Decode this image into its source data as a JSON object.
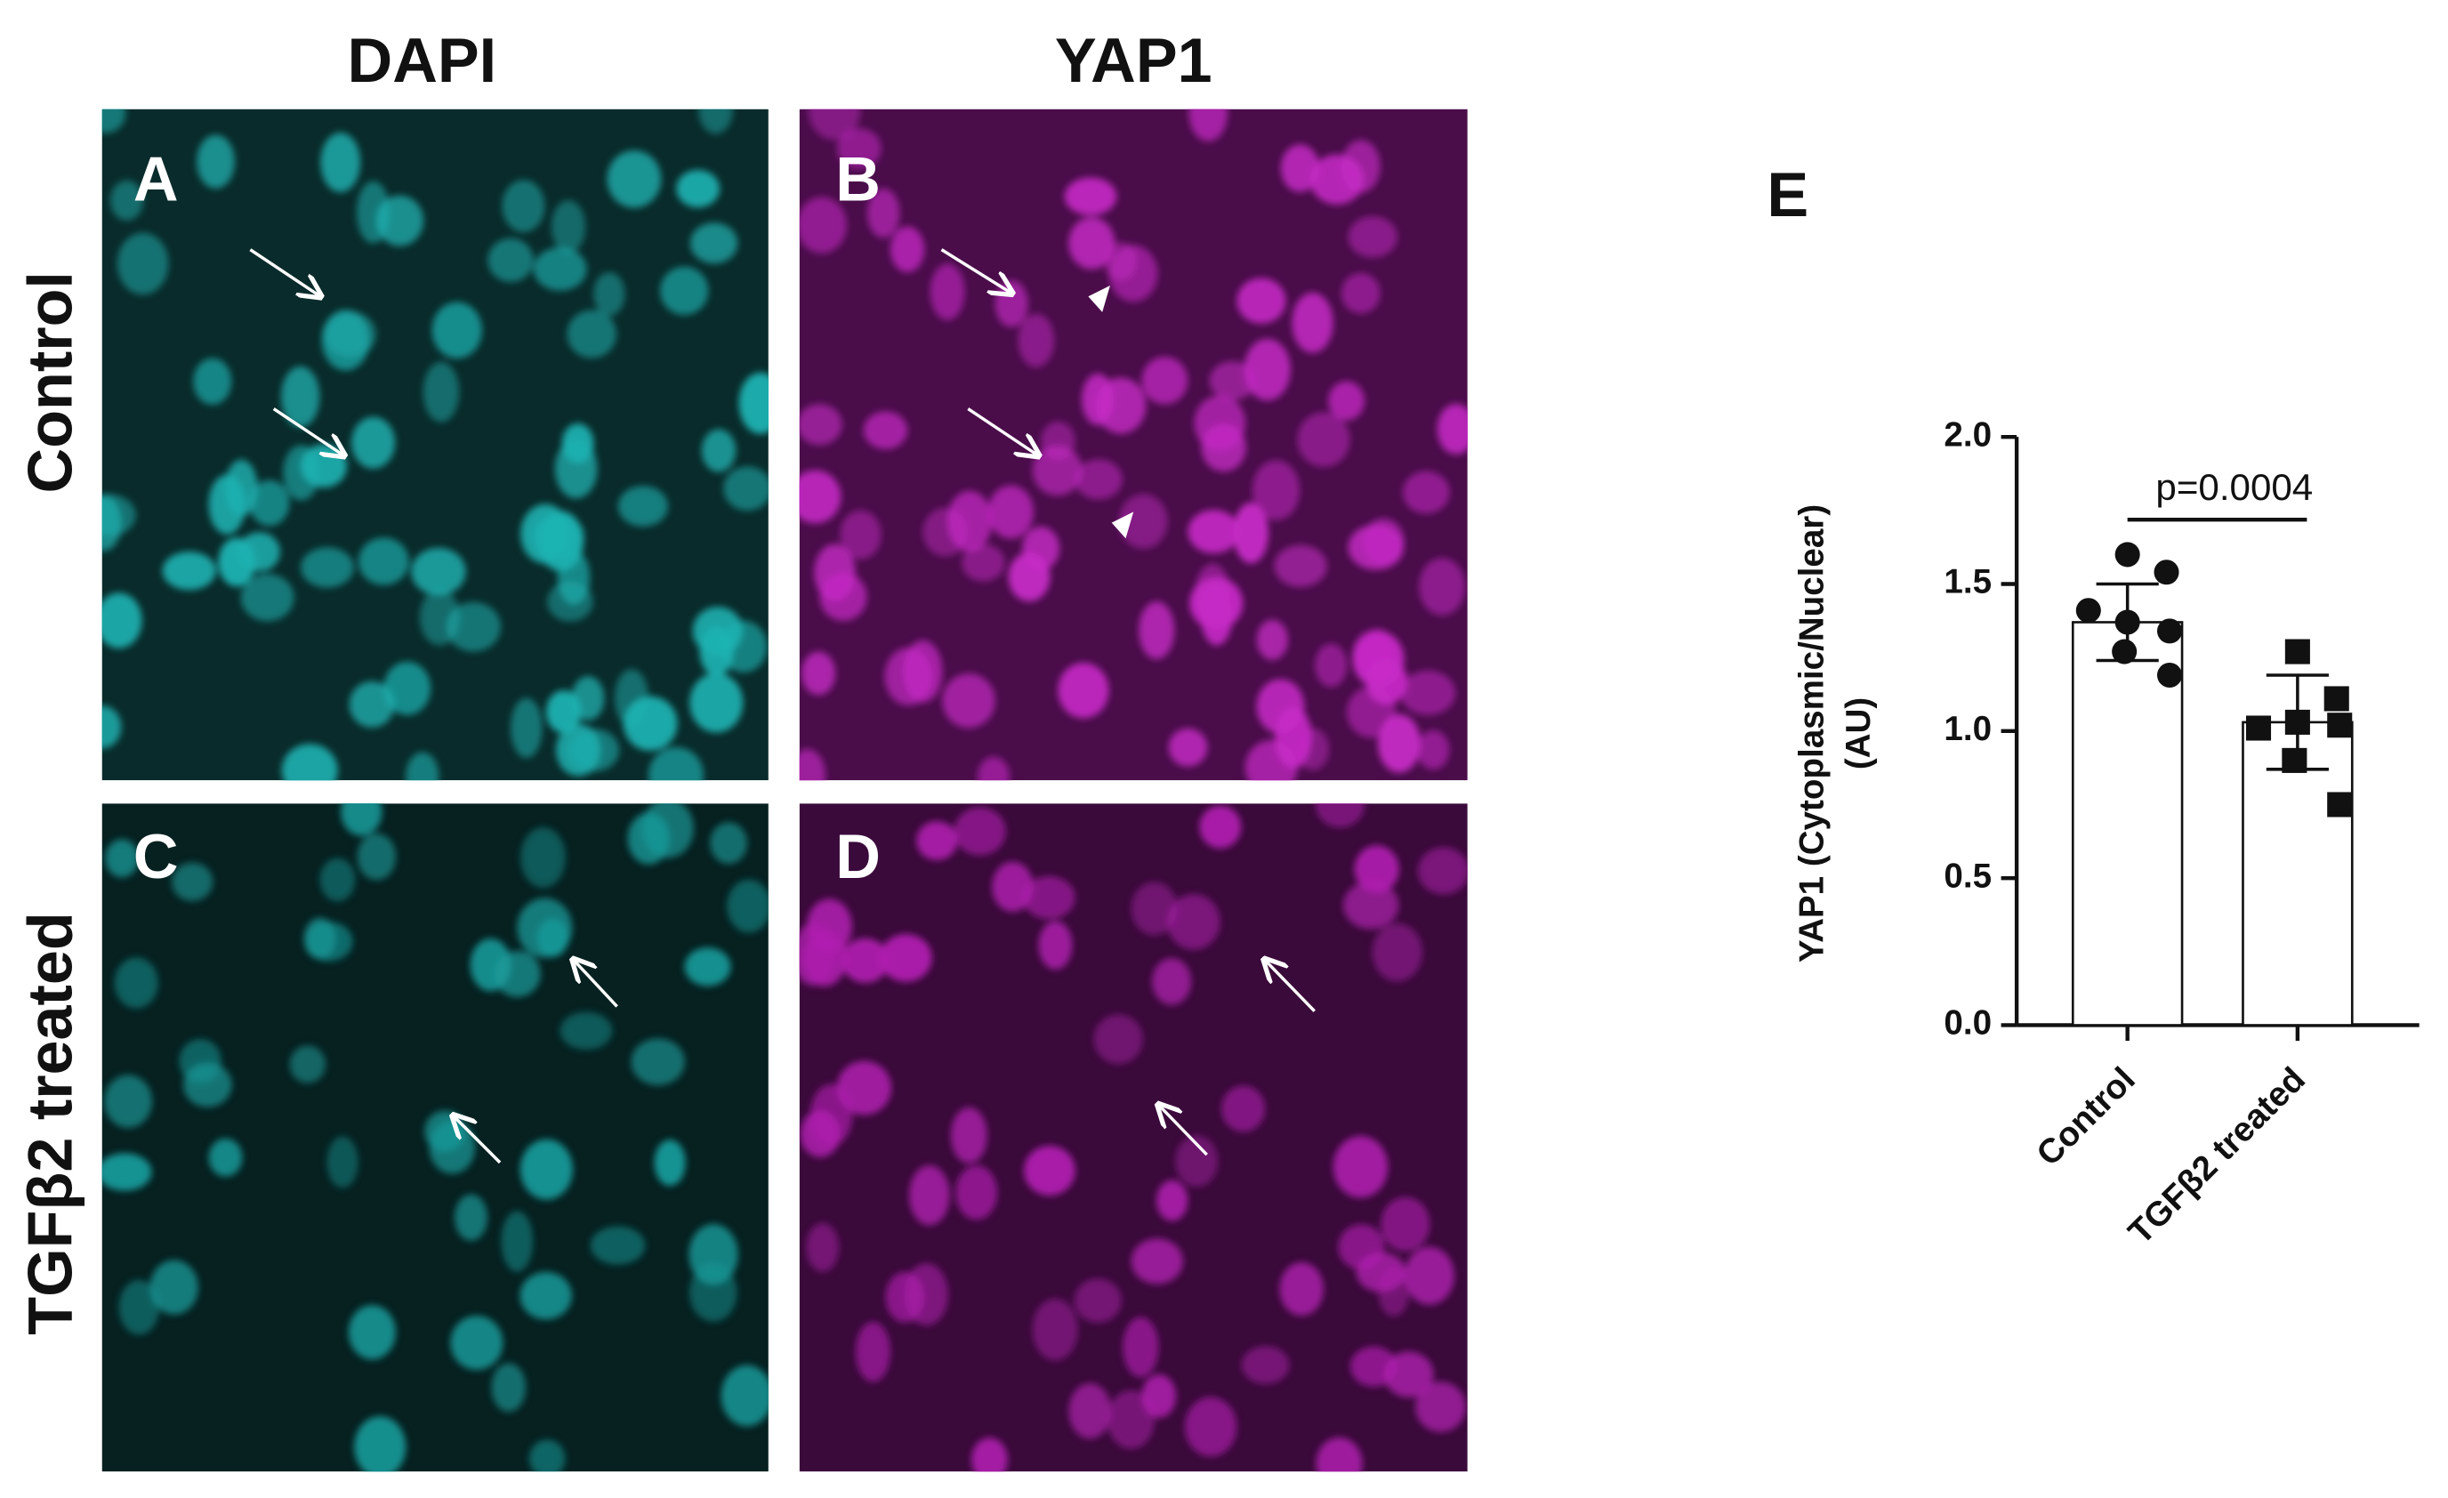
{
  "figure": {
    "columns": [
      "DAPI",
      "YAP1"
    ],
    "rows": [
      "Control",
      "TGFβ2 treated"
    ],
    "panels": [
      "A",
      "B",
      "C",
      "D"
    ]
  },
  "chart_data": {
    "type": "bar",
    "panel": "E",
    "ylabel": [
      "YAP1 (Cytoplasmic/Nuclear)",
      "(AU)"
    ],
    "categories": [
      "Control",
      "TGFβ2 treated"
    ],
    "values": [
      1.37,
      1.03
    ],
    "errors": [
      0.13,
      0.16
    ],
    "points": [
      [
        1.6,
        1.54,
        1.41,
        1.37,
        1.34,
        1.27,
        1.19
      ],
      [
        1.27,
        1.11,
        1.01,
        1.03,
        1.02,
        0.9,
        0.75
      ]
    ],
    "markers": [
      "circle",
      "square"
    ],
    "color": "#ffffff",
    "ylim": [
      0,
      2.0
    ],
    "yticks": [
      {
        "value": 0,
        "label": "0.0"
      },
      {
        "value": 0.5,
        "label": "0.5"
      },
      {
        "value": 1,
        "label": "1.0"
      },
      {
        "value": 1.5,
        "label": "1.5"
      },
      {
        "value": 2,
        "label": "2.0"
      }
    ],
    "annotation": "p=0.0004"
  }
}
